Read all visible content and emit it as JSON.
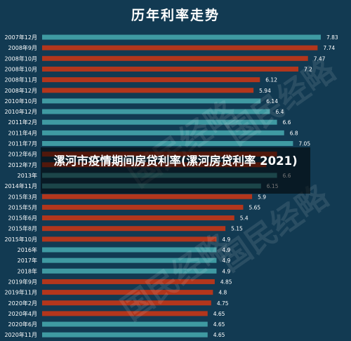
{
  "page_title": "历年利率走势",
  "legend_tag": "国民经略 | 制图",
  "watermark": "国民经略",
  "banner": {
    "text": "漯河市疫情期间房贷利率(漯河房贷利率 2021)"
  },
  "colors": {
    "background": "#123a52",
    "teal": "#3f9aa2",
    "red": "#b3361c",
    "label": "#ffffff"
  },
  "chart_data": {
    "type": "bar",
    "orientation": "horizontal",
    "title": "历年利率走势",
    "categories": [
      "2007年12月",
      "2008年9月",
      "2008年10月",
      "2008年10月",
      "2008年11月",
      "2008年12月",
      "2010年10月",
      "2010年12月",
      "2011年2月",
      "2011年4月",
      "2011年7月",
      "2012年6月",
      "2012年7月",
      "2013年",
      "2014年11月",
      "2015年3月",
      "2015年5月",
      "2015年6月",
      "2015年8月",
      "2015年10月",
      "2016年",
      "2017年",
      "2018年",
      "2019年9月",
      "2019年11月",
      "2020年2月",
      "2020年4月",
      "2020年6月",
      "2020年11月"
    ],
    "values": [
      7.83,
      7.74,
      7.47,
      7.2,
      6.12,
      5.94,
      6.14,
      6.4,
      6.6,
      6.8,
      7.05,
      6.6,
      6.3,
      6.6,
      6.15,
      5.9,
      5.65,
      5.4,
      5.15,
      4.9,
      4.9,
      4.9,
      4.9,
      4.85,
      4.8,
      4.75,
      4.65,
      4.65,
      4.65
    ],
    "value_labels": [
      "7.83",
      "7.74",
      "7.47",
      "7.2",
      "6.12",
      "5.94",
      "6.14",
      "6.4",
      "6.6",
      "6.8",
      "7.05",
      "",
      "",
      "6.6",
      "6.15",
      "5.9",
      "5.65",
      "5.4",
      "5.15",
      "4.9",
      "4.9",
      "4.9",
      "4.9",
      "4.85",
      "4.8",
      "4.75",
      "4.65",
      "4.65",
      "4.65"
    ],
    "bar_colors": [
      "teal",
      "red",
      "red",
      "red",
      "red",
      "red",
      "teal",
      "teal",
      "teal",
      "teal",
      "teal",
      "red",
      "red",
      "teal",
      "teal",
      "red",
      "red",
      "red",
      "red",
      "red",
      "teal",
      "teal",
      "teal",
      "red",
      "red",
      "red",
      "red",
      "teal",
      "teal"
    ],
    "xlim": [
      0,
      8.6
    ],
    "grid": false,
    "legend": "none"
  }
}
